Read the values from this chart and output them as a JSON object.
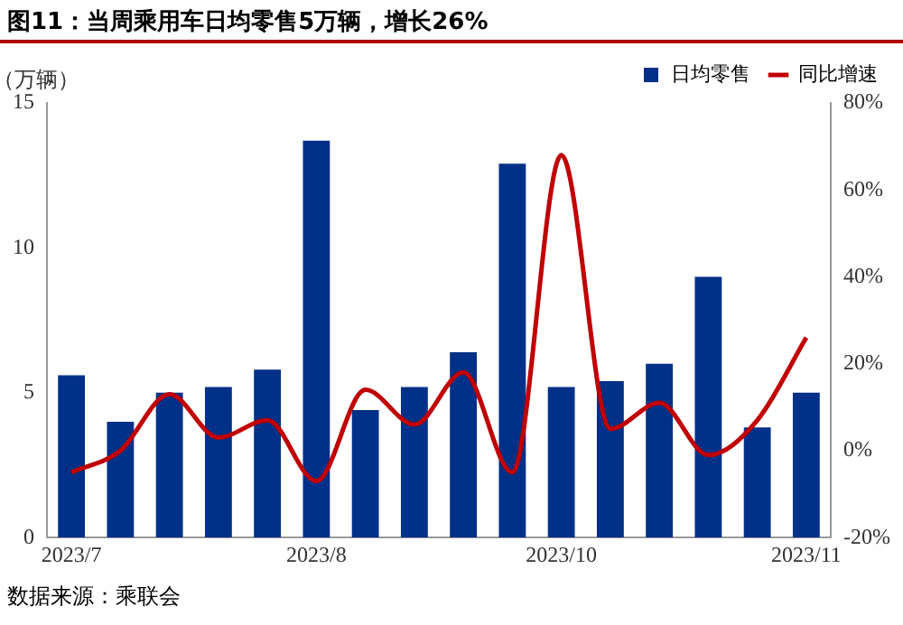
{
  "chart_data": {
    "type": "bar",
    "title": "图11：当周乘用车日均零售5万辆，增长26%",
    "ylabel": "（万辆）",
    "annotations": [
      "数据来源：乘联会"
    ],
    "categories": [
      "2023/7",
      null,
      null,
      null,
      null,
      "2023/8",
      null,
      null,
      null,
      null,
      "2023/10",
      null,
      null,
      null,
      null,
      "2023/11"
    ],
    "series": [
      {
        "name": "日均零售",
        "color": "#003087",
        "values": [
          5.6,
          4.0,
          5.0,
          5.2,
          5.8,
          13.7,
          4.4,
          5.2,
          6.4,
          12.9,
          5.2,
          5.4,
          6.0,
          9.0,
          3.8,
          5.0
        ]
      },
      {
        "name": "同比增速",
        "type": "line",
        "axis": "y2",
        "color": "#c00000",
        "values": [
          -5,
          0,
          13,
          3,
          7,
          -7,
          14,
          6,
          18,
          -5,
          68,
          5,
          11,
          -1,
          7,
          26
        ]
      }
    ],
    "ylim": [
      0,
      15
    ],
    "yticks": [
      0,
      5,
      10,
      15
    ],
    "y2lim": [
      -20,
      80
    ],
    "y2ticks": [
      {
        "value": -20,
        "label": "-20%"
      },
      {
        "value": 0,
        "label": "0%"
      },
      {
        "value": 20,
        "label": "20%"
      },
      {
        "value": 40,
        "label": "40%"
      },
      {
        "value": 60,
        "label": "60%"
      },
      {
        "value": 80,
        "label": "80%"
      }
    ],
    "grid": false,
    "legend": "top",
    "marker": "none",
    "line_style": "solid"
  }
}
